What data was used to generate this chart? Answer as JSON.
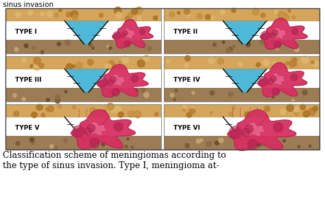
{
  "background_color": "#ffffff",
  "title_top": "sinus invasion",
  "caption_line1": "Classification scheme of meningiomas according to",
  "caption_line2": "the type of sinus invasion. Type I, meningioma at-",
  "label_fontsize": 6.5,
  "caption_fontsize": 9.0,
  "panels": [
    {
      "label": "TYPE I",
      "type": 1,
      "col": 0,
      "row": 0
    },
    {
      "label": "TYPE II",
      "type": 2,
      "col": 1,
      "row": 0
    },
    {
      "label": "TYPE III",
      "type": 3,
      "col": 0,
      "row": 1
    },
    {
      "label": "TYPE IV",
      "type": 4,
      "col": 1,
      "row": 1
    },
    {
      "label": "TYPE V",
      "type": 5,
      "col": 0,
      "row": 2
    },
    {
      "label": "TYPE VI",
      "type": 6,
      "col": 1,
      "row": 2
    }
  ]
}
